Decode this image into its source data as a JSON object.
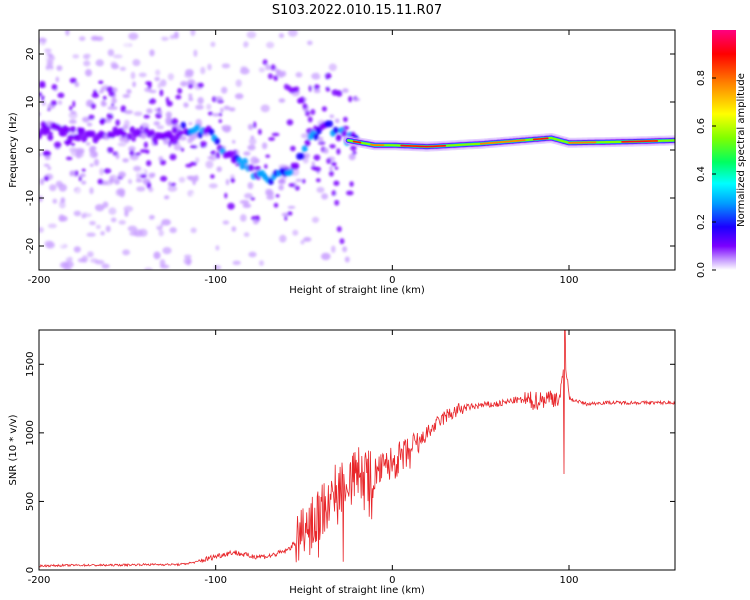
{
  "figure": {
    "title": "S103.2022.010.15.11.R07"
  },
  "chart_data": [
    {
      "type": "heatmap",
      "xlabel": "Height of straight line (km)",
      "ylabel": "Frequency (Hz)",
      "xlim": [
        -200,
        160
      ],
      "ylim": [
        -25,
        25
      ],
      "xticks": [
        -200,
        -100,
        0,
        100
      ],
      "yticks": [
        -20,
        -10,
        0,
        10,
        20
      ],
      "colorbar": {
        "label": "Normalized spectral amplitude",
        "range": [
          0,
          1
        ],
        "ticks": [
          "0.0",
          "0.2",
          "0.4",
          "0.6",
          "0.8"
        ],
        "colors": [
          "#ffffff",
          "#c9a0ff",
          "#7a00ff",
          "#1a00ff",
          "#00a0ff",
          "#00ffff",
          "#00ff60",
          "#80ff00",
          "#ffff00",
          "#ff8000",
          "#ff0000",
          "#ff0080"
        ]
      },
      "ridge": [
        {
          "x": -200,
          "y": 4
        },
        {
          "x": -180,
          "y": 3.5
        },
        {
          "x": -160,
          "y": 3
        },
        {
          "x": -140,
          "y": 3
        },
        {
          "x": -120,
          "y": 4
        },
        {
          "x": -105,
          "y": 4
        },
        {
          "x": -95,
          "y": 0
        },
        {
          "x": -85,
          "y": -3
        },
        {
          "x": -75,
          "y": -5
        },
        {
          "x": -65,
          "y": -6
        },
        {
          "x": -55,
          "y": -3
        },
        {
          "x": -45,
          "y": 3
        },
        {
          "x": -35,
          "y": 5
        },
        {
          "x": -25,
          "y": 2
        },
        {
          "x": -10,
          "y": 1
        },
        {
          "x": 0,
          "y": 1
        },
        {
          "x": 20,
          "y": 0.7
        },
        {
          "x": 50,
          "y": 1.3
        },
        {
          "x": 80,
          "y": 2.2
        },
        {
          "x": 90,
          "y": 2.5
        },
        {
          "x": 100,
          "y": 1.5
        },
        {
          "x": 130,
          "y": 1.7
        },
        {
          "x": 160,
          "y": 2
        }
      ],
      "secondary_arc": [
        {
          "x": -70,
          "y": 17
        },
        {
          "x": -60,
          "y": 14
        },
        {
          "x": -50,
          "y": 10
        },
        {
          "x": -40,
          "y": 3
        },
        {
          "x": -35,
          "y": -5
        },
        {
          "x": -30,
          "y": -15
        },
        {
          "x": -25,
          "y": -25
        }
      ]
    },
    {
      "type": "line",
      "xlabel": "Height of straight line (km)",
      "ylabel": "SNR (10 * v/v)",
      "xlim": [
        -200,
        160
      ],
      "ylim": [
        0,
        1750
      ],
      "xticks": [
        -200,
        -100,
        0,
        100
      ],
      "yticks": [
        0,
        500,
        1000,
        1500
      ],
      "color": "#e8262a",
      "x": [
        -200,
        -180,
        -160,
        -140,
        -120,
        -110,
        -100,
        -90,
        -80,
        -70,
        -60,
        -50,
        -40,
        -30,
        -20,
        -10,
        0,
        10,
        20,
        30,
        40,
        50,
        60,
        70,
        80,
        90,
        95,
        98,
        100,
        110,
        120,
        130,
        140,
        150,
        160
      ],
      "y": [
        30,
        35,
        35,
        40,
        40,
        60,
        100,
        130,
        100,
        100,
        140,
        250,
        450,
        600,
        700,
        700,
        780,
        850,
        1000,
        1120,
        1180,
        1200,
        1210,
        1240,
        1230,
        1260,
        1250,
        1550,
        1250,
        1210,
        1220,
        1220,
        1220,
        1220,
        1220
      ]
    }
  ]
}
